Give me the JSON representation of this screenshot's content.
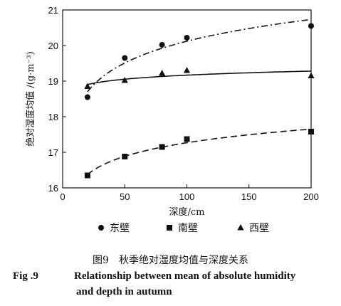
{
  "chart_data": {
    "type": "scatter",
    "xlabel": "深度/cm",
    "ylabel": "绝对湿度均值 /(g·m⁻³)",
    "xlim": [
      0,
      200
    ],
    "ylim": [
      16,
      21
    ],
    "xticks": [
      "0",
      "50",
      "100",
      "150",
      "200"
    ],
    "yticks": [
      "16",
      "17",
      "18",
      "19",
      "20",
      "21"
    ],
    "x": [
      20,
      50,
      80,
      100,
      200
    ],
    "series": [
      {
        "name": "东壁",
        "marker": "circle",
        "values": [
          18.55,
          19.65,
          20.02,
          20.22,
          20.55
        ],
        "trend": "dash-dot"
      },
      {
        "name": "南壁",
        "marker": "square",
        "values": [
          16.35,
          16.88,
          17.15,
          17.37,
          17.58
        ],
        "trend": "dashed"
      },
      {
        "name": "西壁",
        "marker": "triangle",
        "values": [
          18.85,
          19.02,
          19.22,
          19.3,
          19.15
        ],
        "trend": "solid"
      }
    ],
    "legend_position": "bottom",
    "grid": false
  },
  "caption": {
    "cn": "图9　秋季绝对湿度均值与深度关系",
    "en_label": "Fig .9",
    "en_line1": "Relationship between mean of absolute humidity",
    "en_line2": "and depth in autumn"
  }
}
